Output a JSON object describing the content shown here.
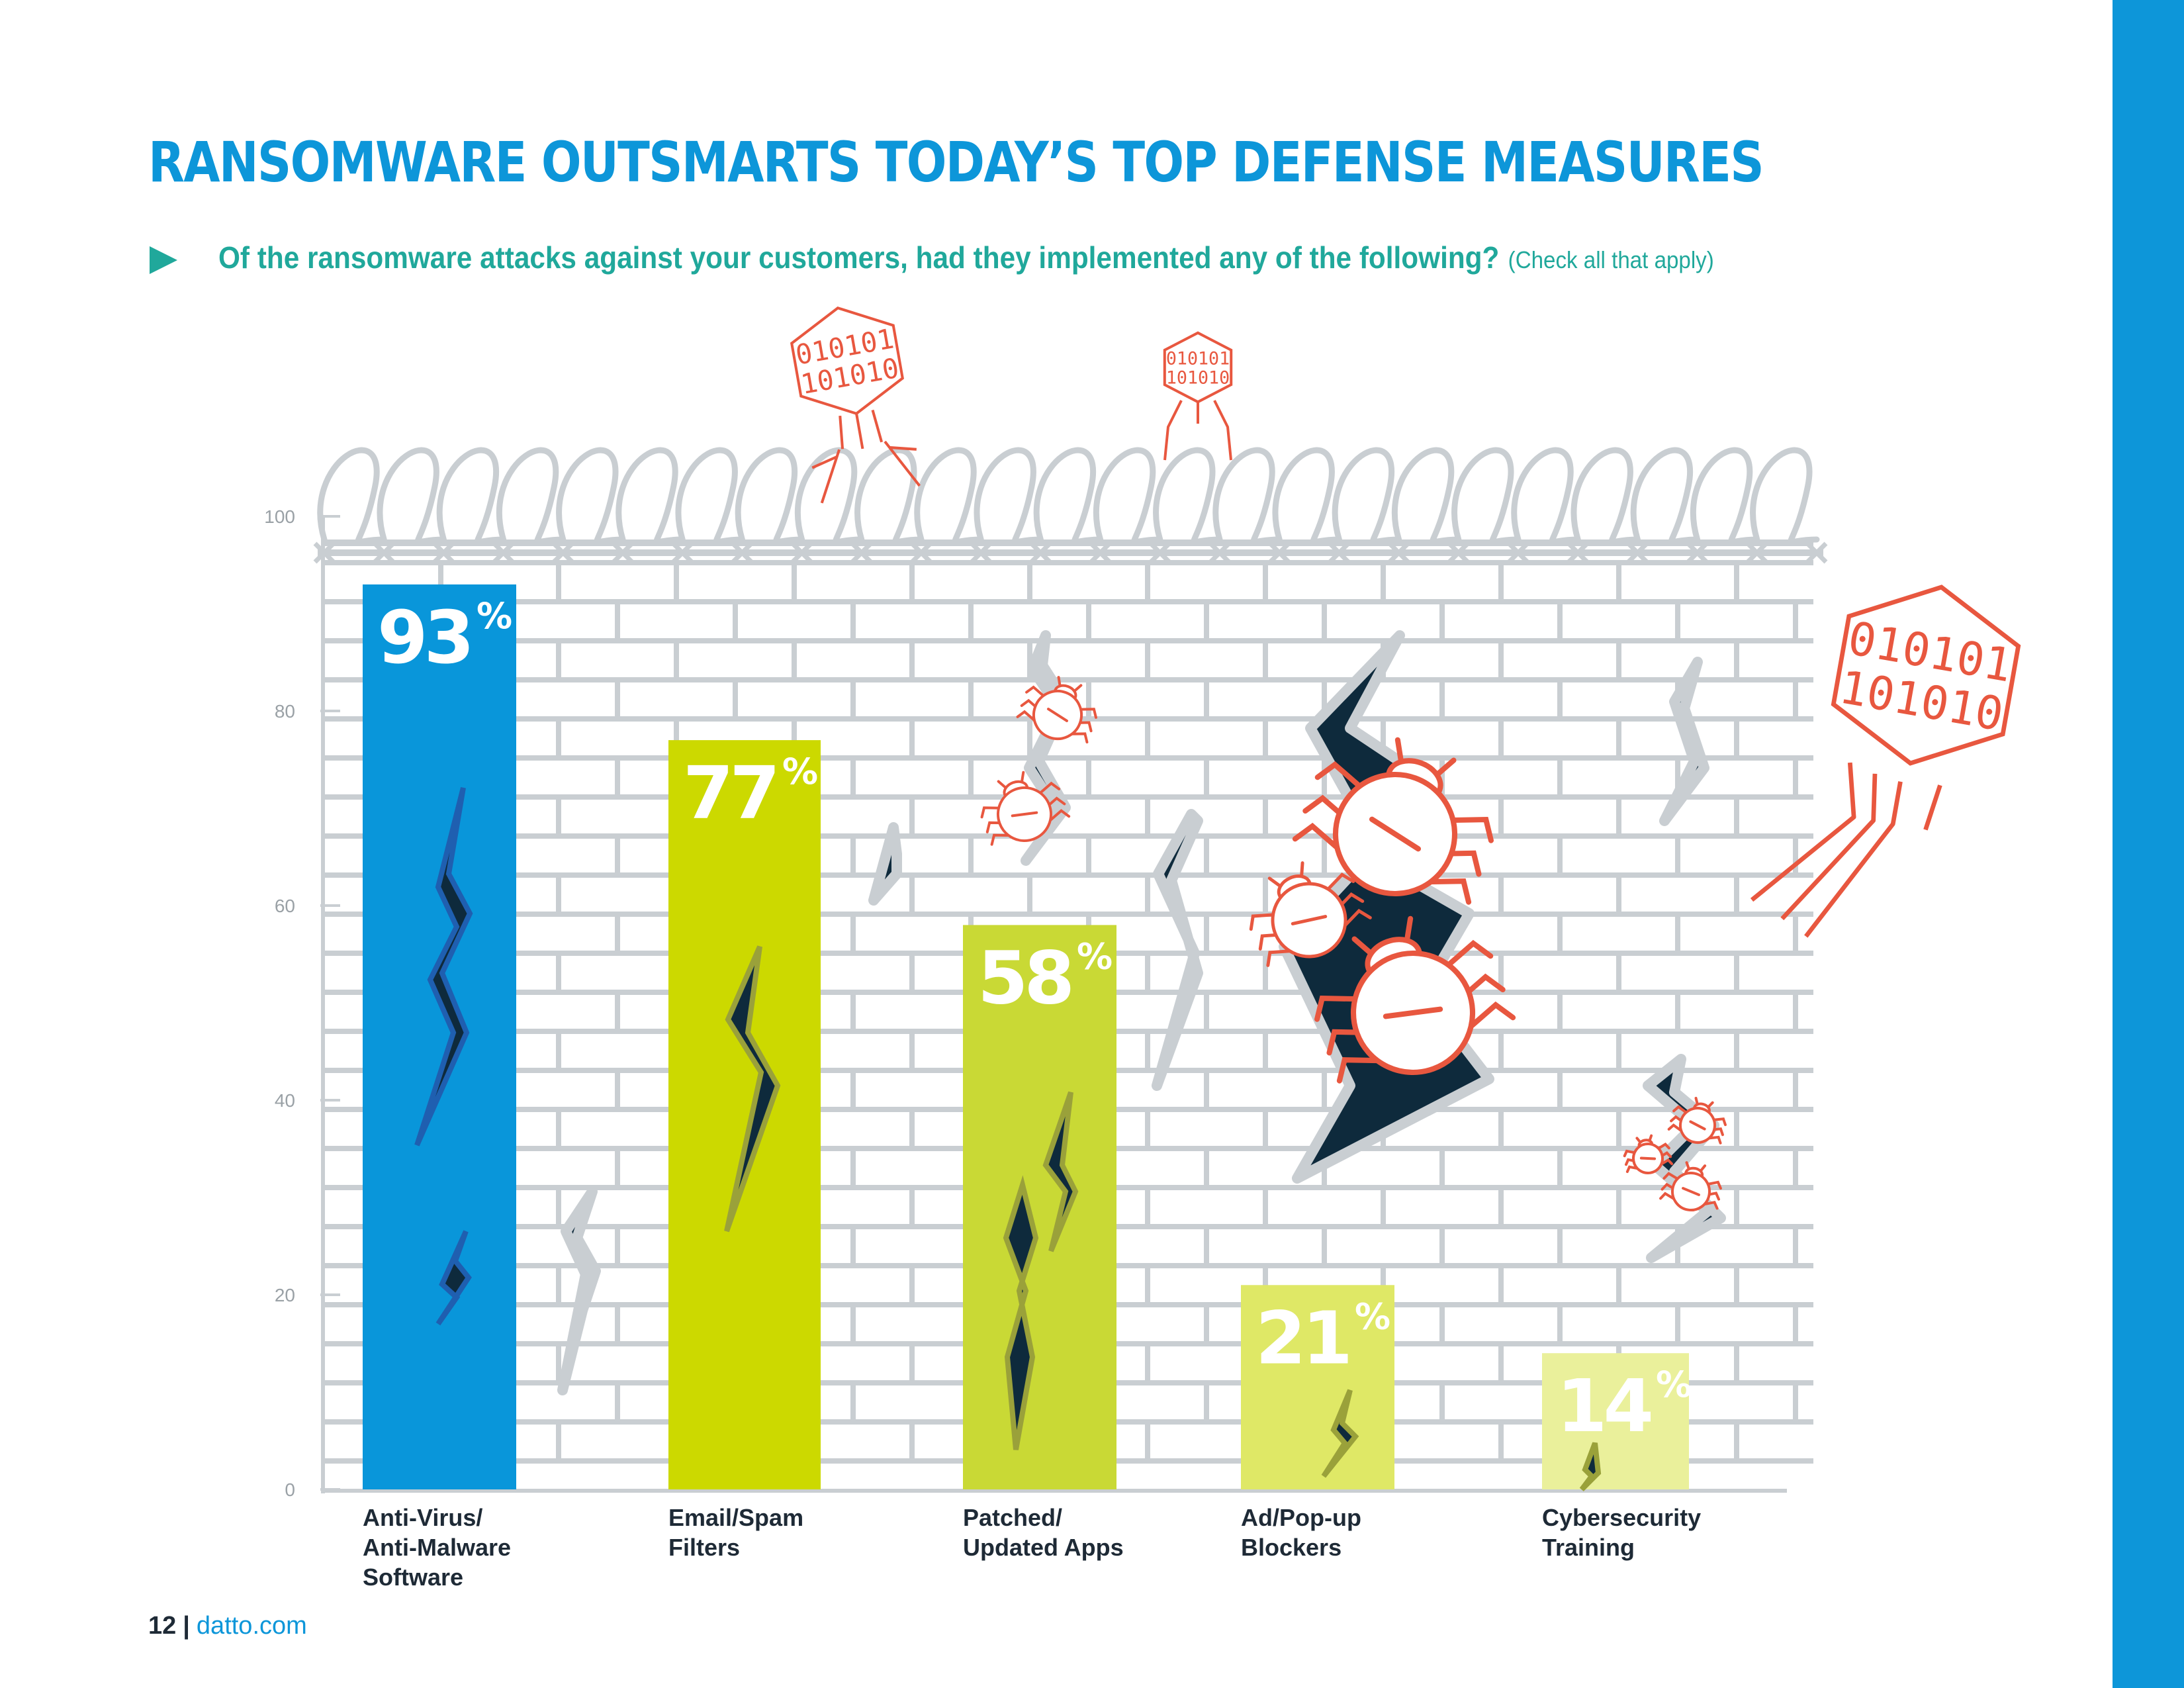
{
  "header": {
    "title": "RANSOMWARE OUTSMARTS TODAY’S TOP DEFENSE MEASURES",
    "question": "Of the ransomware attacks against your customers, had they implemented any of the following?",
    "question_note": "(Check all that apply)"
  },
  "footer": {
    "page_number": "12",
    "separator": "|",
    "site": "datto.com"
  },
  "colors": {
    "accent": "#0d96d9",
    "question": "#20a89b",
    "wall": "#c9ced2",
    "crack": "#0e2a3c",
    "bug": "#e8573f"
  },
  "decorations": {
    "binary_text": [
      "010101",
      "101010"
    ],
    "icons": [
      "barbed-wire",
      "brick-wall",
      "crack",
      "bug-icon",
      "virus-icon"
    ]
  },
  "chart_data": {
    "type": "bar",
    "categories": [
      "Anti-Virus/ Anti-Malware Software",
      "Email/Spam Filters",
      "Patched/ Updated Apps",
      "Ad/Pop-up Blockers",
      "Cybersecurity Training"
    ],
    "category_lines": [
      [
        "Anti-Virus/",
        "Anti-Malware",
        "Software"
      ],
      [
        "Email/Spam",
        "Filters"
      ],
      [
        "Patched/",
        "Updated Apps"
      ],
      [
        "Ad/Pop-up",
        "Blockers"
      ],
      [
        "Cybersecurity",
        "Training"
      ]
    ],
    "values": [
      93,
      77,
      58,
      21,
      14
    ],
    "labels": [
      "93",
      "77",
      "58",
      "21",
      "14"
    ],
    "unit": "%",
    "bar_colors": [
      "#0996da",
      "#ccd900",
      "#c9d935",
      "#dfe866",
      "#eaf09b"
    ],
    "ylim": [
      0,
      100
    ],
    "yticks": [
      0,
      20,
      40,
      60,
      80,
      100
    ],
    "grid": false,
    "xlabel": "",
    "ylabel": ""
  }
}
